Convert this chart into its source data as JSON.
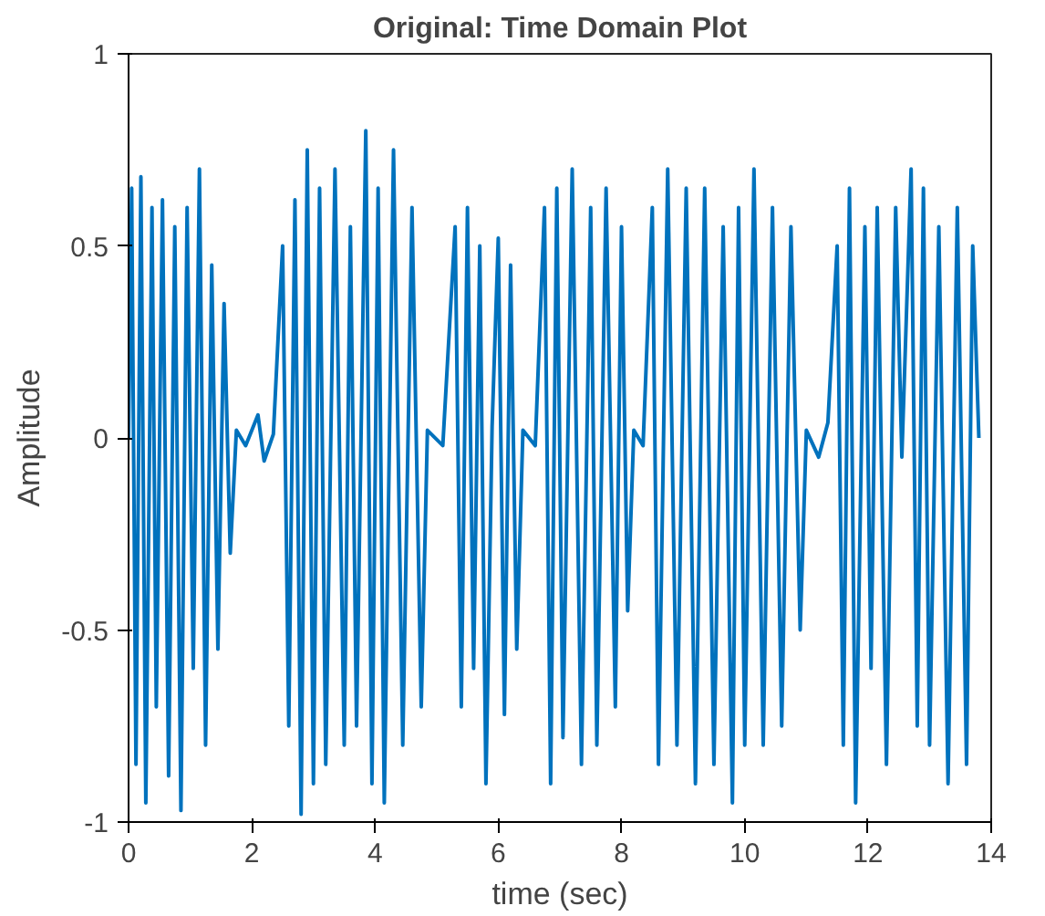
{
  "chart_data": {
    "type": "line",
    "title": "Original: Time Domain Plot",
    "xlabel": "time (sec)",
    "ylabel": "Amplitude",
    "xlim": [
      0,
      14
    ],
    "xticks": [
      0,
      2,
      4,
      6,
      8,
      10,
      12,
      14
    ],
    "ylim": [
      -1,
      1
    ],
    "yticks": [
      -1,
      -0.5,
      0,
      0.5,
      1
    ],
    "grid": false,
    "marker": "none",
    "line_style": "solid",
    "series": [
      {
        "color": "#0072bd",
        "x": [
          0.0,
          0.05,
          0.12,
          0.2,
          0.28,
          0.38,
          0.45,
          0.55,
          0.65,
          0.75,
          0.85,
          0.95,
          1.05,
          1.15,
          1.25,
          1.35,
          1.45,
          1.55,
          1.65,
          1.75,
          1.9,
          2.1,
          2.2,
          2.35,
          2.5,
          2.6,
          2.7,
          2.8,
          2.9,
          3.0,
          3.1,
          3.2,
          3.35,
          3.5,
          3.6,
          3.7,
          3.85,
          3.95,
          4.05,
          4.15,
          4.3,
          4.45,
          4.6,
          4.75,
          4.85,
          5.1,
          5.3,
          5.4,
          5.5,
          5.6,
          5.7,
          5.8,
          5.9,
          6.0,
          6.1,
          6.2,
          6.3,
          6.4,
          6.6,
          6.75,
          6.85,
          6.95,
          7.05,
          7.2,
          7.35,
          7.5,
          7.6,
          7.75,
          7.9,
          8.0,
          8.1,
          8.2,
          8.35,
          8.5,
          8.6,
          8.75,
          8.9,
          9.05,
          9.2,
          9.35,
          9.5,
          9.65,
          9.8,
          9.9,
          10.0,
          10.15,
          10.3,
          10.45,
          10.6,
          10.75,
          10.9,
          11.0,
          11.2,
          11.35,
          11.5,
          11.6,
          11.7,
          11.8,
          11.95,
          12.05,
          12.15,
          12.3,
          12.45,
          12.55,
          12.7,
          12.8,
          12.9,
          13.0,
          13.15,
          13.3,
          13.45,
          13.6,
          13.7,
          13.8
        ],
        "values": [
          0.0,
          0.65,
          -0.85,
          0.68,
          -0.95,
          0.6,
          -0.7,
          0.62,
          -0.88,
          0.55,
          -0.97,
          0.6,
          -0.6,
          0.7,
          -0.8,
          0.45,
          -0.55,
          0.35,
          -0.3,
          0.02,
          -0.02,
          0.06,
          -0.06,
          0.01,
          0.5,
          -0.75,
          0.62,
          -0.98,
          0.75,
          -0.9,
          0.65,
          -0.85,
          0.7,
          -0.8,
          0.55,
          -0.75,
          0.8,
          -0.9,
          0.65,
          -0.95,
          0.75,
          -0.8,
          0.6,
          -0.7,
          0.02,
          -0.02,
          0.55,
          -0.7,
          0.6,
          -0.6,
          0.5,
          -0.9,
          0.03,
          0.52,
          -0.72,
          0.45,
          -0.55,
          0.02,
          -0.02,
          0.6,
          -0.9,
          0.65,
          -0.78,
          0.7,
          -0.85,
          0.6,
          -0.8,
          0.65,
          -0.7,
          0.55,
          -0.45,
          0.02,
          -0.02,
          0.6,
          -0.85,
          0.7,
          -0.8,
          0.65,
          -0.9,
          0.65,
          -0.85,
          0.55,
          -0.95,
          0.6,
          -0.8,
          0.7,
          -0.8,
          0.6,
          -0.75,
          0.55,
          -0.5,
          0.02,
          -0.05,
          0.04,
          0.5,
          -0.8,
          0.65,
          -0.95,
          0.55,
          -0.6,
          0.6,
          -0.85,
          0.6,
          -0.05,
          0.7,
          -0.75,
          0.65,
          -0.8,
          0.55,
          -0.9,
          0.6,
          -0.85,
          0.5,
          0.0
        ]
      }
    ]
  }
}
